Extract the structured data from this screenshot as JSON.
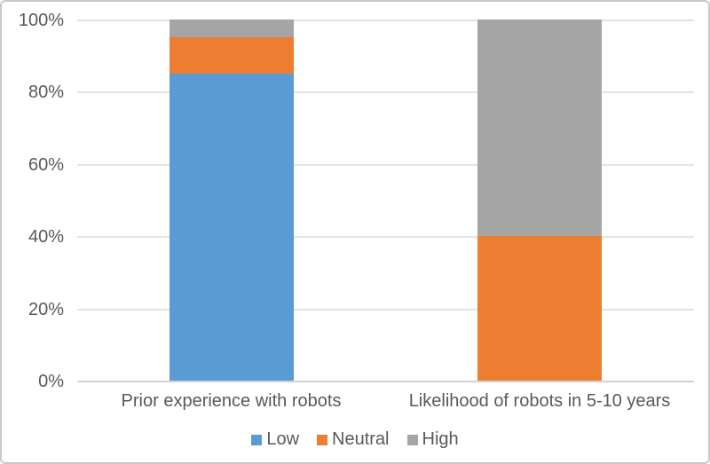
{
  "chart_data": {
    "type": "bar",
    "subtype": "stacked-100-percent",
    "categories": [
      "Prior experience with robots",
      "Likelihood of robots in 5-10 years"
    ],
    "series": [
      {
        "name": "Low",
        "color": "#5B9BD5",
        "values": [
          85,
          0
        ]
      },
      {
        "name": "Neutral",
        "color": "#ED7D31",
        "values": [
          10,
          40
        ]
      },
      {
        "name": "High",
        "color": "#A5A5A5",
        "values": [
          5,
          60
        ]
      }
    ],
    "y_axis": {
      "min": 0,
      "max": 100,
      "tick_step": 20,
      "tick_labels": [
        "0%",
        "20%",
        "40%",
        "60%",
        "80%",
        "100%"
      ]
    },
    "xlabel": "",
    "ylabel": "",
    "grid": true,
    "legend_position": "bottom"
  },
  "colors": {
    "background": "#FFFFFF",
    "frame_border": "#C9C9C9",
    "gridline": "#E4E4E4",
    "axis_line": "#D2D2D2",
    "text": "#595959"
  }
}
